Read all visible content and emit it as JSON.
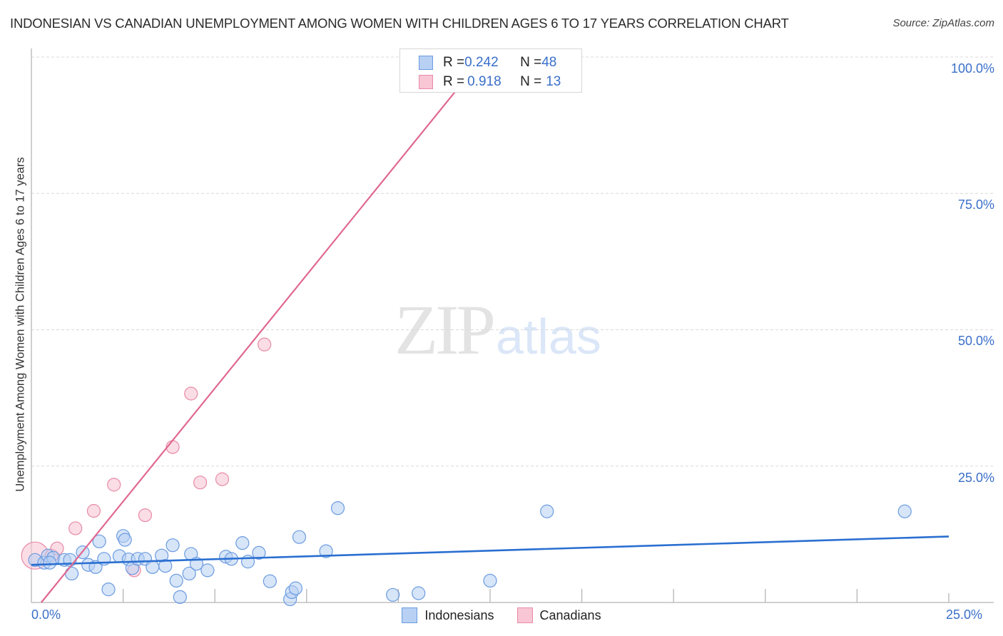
{
  "header": {
    "title": "INDONESIAN VS CANADIAN UNEMPLOYMENT AMONG WOMEN WITH CHILDREN AGES 6 TO 17 YEARS CORRELATION CHART",
    "source": "Source: ZipAtlas.com"
  },
  "watermark": {
    "zip": "ZIP",
    "atlas": "atlas"
  },
  "legend": {
    "rows": [
      {
        "series": "Indonesians",
        "r_label": "R = ",
        "r_value": "0.242",
        "n_label": "N = ",
        "n_value": "48"
      },
      {
        "series": "Canadians",
        "r_label": "R = ",
        "r_value": "0.918",
        "n_label": "N = ",
        "n_value": "13"
      }
    ]
  },
  "bottom_legend": [
    "Indonesians",
    "Canadians"
  ],
  "axes": {
    "y_ticks": [
      "100.0%",
      "75.0%",
      "50.0%",
      "25.0%"
    ],
    "x_ticks": [
      "0.0%",
      "25.0%"
    ]
  },
  "colors": {
    "indonesians_fill": "#b7d0f3",
    "indonesians_stroke": "#6b9be0",
    "indonesians_line": "#2a6fd1",
    "canadians_fill": "#f8c6d5",
    "canadians_stroke": "#e88aa6",
    "canadians_line": "#e06890",
    "tick_label": "#3a6fc9"
  },
  "chart_data": {
    "type": "scatter",
    "title": "INDONESIAN VS CANADIAN UNEMPLOYMENT AMONG WOMEN WITH CHILDREN AGES 6 TO 17 YEARS CORRELATION CHART",
    "xlabel": "",
    "ylabel": "Unemployment Among Women with Children Ages 6 to 17 years",
    "xlim": [
      0,
      25
    ],
    "ylim": [
      0,
      100
    ],
    "x_tick_labels": [
      "0.0%",
      "25.0%"
    ],
    "y_tick_labels": [
      "25.0%",
      "50.0%",
      "75.0%",
      "100.0%"
    ],
    "grid": {
      "horizontal_dashed": [
        25,
        50,
        75,
        100
      ]
    },
    "legend_position": "top-center inset + bottom",
    "series": [
      {
        "name": "Indonesians",
        "r": 0.242,
        "n": 48,
        "trend": {
          "x": [
            0,
            25
          ],
          "y": [
            6.9,
            12.1
          ]
        },
        "points": [
          {
            "x": 0.1,
            "y": 7.8
          },
          {
            "x": 0.35,
            "y": 7.3
          },
          {
            "x": 0.45,
            "y": 8.6
          },
          {
            "x": 0.6,
            "y": 8.2
          },
          {
            "x": 0.9,
            "y": 7.8
          },
          {
            "x": 1.05,
            "y": 7.8
          },
          {
            "x": 1.1,
            "y": 5.3
          },
          {
            "x": 1.4,
            "y": 9.2
          },
          {
            "x": 1.55,
            "y": 6.9
          },
          {
            "x": 1.75,
            "y": 6.5
          },
          {
            "x": 1.85,
            "y": 11.2
          },
          {
            "x": 1.98,
            "y": 8.0
          },
          {
            "x": 2.1,
            "y": 2.4
          },
          {
            "x": 2.4,
            "y": 8.5
          },
          {
            "x": 2.5,
            "y": 12.2
          },
          {
            "x": 2.55,
            "y": 11.5
          },
          {
            "x": 2.65,
            "y": 7.9
          },
          {
            "x": 2.75,
            "y": 6.3
          },
          {
            "x": 2.9,
            "y": 8.0
          },
          {
            "x": 3.1,
            "y": 8.0
          },
          {
            "x": 3.3,
            "y": 6.5
          },
          {
            "x": 3.55,
            "y": 8.6
          },
          {
            "x": 3.65,
            "y": 6.7
          },
          {
            "x": 3.85,
            "y": 10.5
          },
          {
            "x": 3.95,
            "y": 4.0
          },
          {
            "x": 4.05,
            "y": 1.0
          },
          {
            "x": 4.3,
            "y": 5.3
          },
          {
            "x": 4.35,
            "y": 8.9
          },
          {
            "x": 4.5,
            "y": 7.1
          },
          {
            "x": 4.8,
            "y": 5.9
          },
          {
            "x": 5.3,
            "y": 8.4
          },
          {
            "x": 5.45,
            "y": 8.0
          },
          {
            "x": 5.75,
            "y": 10.9
          },
          {
            "x": 5.9,
            "y": 7.5
          },
          {
            "x": 6.2,
            "y": 9.1
          },
          {
            "x": 6.5,
            "y": 3.9
          },
          {
            "x": 7.05,
            "y": 0.6
          },
          {
            "x": 7.1,
            "y": 1.9
          },
          {
            "x": 7.2,
            "y": 2.6
          },
          {
            "x": 7.3,
            "y": 12.0
          },
          {
            "x": 8.03,
            "y": 9.4
          },
          {
            "x": 8.35,
            "y": 17.3
          },
          {
            "x": 9.85,
            "y": 1.4
          },
          {
            "x": 10.55,
            "y": 1.7
          },
          {
            "x": 12.5,
            "y": 4.0
          },
          {
            "x": 14.05,
            "y": 16.7
          },
          {
            "x": 23.8,
            "y": 16.7
          },
          {
            "x": 0.5,
            "y": 7.3
          }
        ]
      },
      {
        "name": "Canadians",
        "r": 0.918,
        "n": 13,
        "trend": {
          "x": [
            0.27,
            12.0
          ],
          "y": [
            0,
            97.4
          ]
        },
        "points": [
          {
            "x": 0.1,
            "y": 8.6,
            "size": "large"
          },
          {
            "x": 0.55,
            "y": 8.6
          },
          {
            "x": 0.7,
            "y": 9.9
          },
          {
            "x": 1.2,
            "y": 13.6
          },
          {
            "x": 1.7,
            "y": 16.8
          },
          {
            "x": 2.25,
            "y": 21.6
          },
          {
            "x": 2.8,
            "y": 5.9
          },
          {
            "x": 3.1,
            "y": 16.0
          },
          {
            "x": 3.85,
            "y": 28.5
          },
          {
            "x": 4.35,
            "y": 38.3
          },
          {
            "x": 4.6,
            "y": 22.0
          },
          {
            "x": 5.2,
            "y": 22.6
          },
          {
            "x": 6.35,
            "y": 47.3
          }
        ]
      }
    ]
  }
}
